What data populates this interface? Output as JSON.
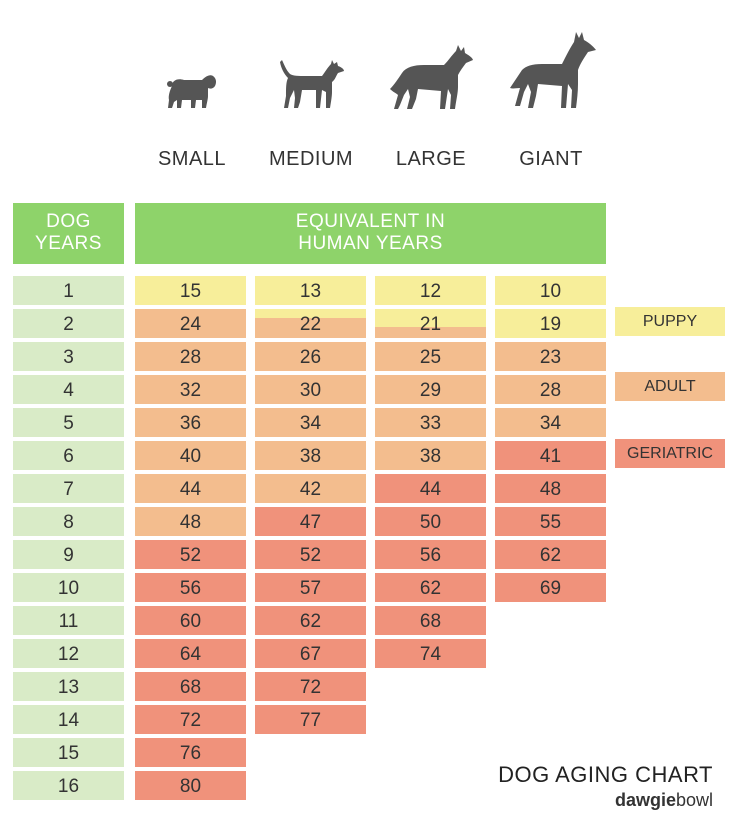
{
  "colors": {
    "header_green": "#8ed36a",
    "dog_years_cell": "#d9ebc7",
    "puppy": "#f7ee9a",
    "adult": "#f3bd8e",
    "geriatric": "#f0927b",
    "icon": "#555555"
  },
  "sizes": [
    {
      "label": "SMALL",
      "icon": "pug-silhouette-icon"
    },
    {
      "label": "MEDIUM",
      "icon": "medium-dog-silhouette-icon"
    },
    {
      "label": "LARGE",
      "icon": "shepherd-silhouette-icon"
    },
    {
      "label": "GIANT",
      "icon": "great-dane-silhouette-icon"
    }
  ],
  "headers": {
    "dog_years": [
      "DOG",
      "YEARS"
    ],
    "human_years": [
      "EQUIVALENT IN",
      "HUMAN YEARS"
    ]
  },
  "dog_years": [
    "1",
    "2",
    "3",
    "4",
    "5",
    "6",
    "7",
    "8",
    "9",
    "10",
    "11",
    "12",
    "13",
    "14",
    "15",
    "16"
  ],
  "columns": [
    {
      "size": "SMALL",
      "values": [
        "15",
        "24",
        "28",
        "32",
        "36",
        "40",
        "44",
        "48",
        "52",
        "56",
        "60",
        "64",
        "68",
        "72",
        "76",
        "80"
      ],
      "stages": [
        "puppy",
        "adult",
        "adult",
        "adult",
        "adult",
        "adult",
        "adult",
        "adult",
        "geriatric",
        "geriatric",
        "geriatric",
        "geriatric",
        "geriatric",
        "geriatric",
        "geriatric",
        "geriatric"
      ]
    },
    {
      "size": "MEDIUM",
      "values": [
        "13",
        "22",
        "26",
        "30",
        "34",
        "38",
        "42",
        "47",
        "52",
        "57",
        "62",
        "67",
        "72",
        "77"
      ],
      "stages": [
        "puppy",
        "puppy-adult",
        "adult",
        "adult",
        "adult",
        "adult",
        "adult",
        "geriatric",
        "geriatric",
        "geriatric",
        "geriatric",
        "geriatric",
        "geriatric",
        "geriatric"
      ]
    },
    {
      "size": "LARGE",
      "values": [
        "12",
        "21",
        "25",
        "29",
        "33",
        "38",
        "44",
        "50",
        "56",
        "62",
        "68",
        "74"
      ],
      "stages": [
        "puppy",
        "puppy-adult",
        "adult",
        "adult",
        "adult",
        "adult",
        "geriatric",
        "geriatric",
        "geriatric",
        "geriatric",
        "geriatric",
        "geriatric"
      ]
    },
    {
      "size": "GIANT",
      "values": [
        "10",
        "19",
        "23",
        "28",
        "34",
        "41",
        "48",
        "55",
        "62",
        "69"
      ],
      "stages": [
        "puppy",
        "puppy",
        "adult",
        "adult",
        "adult",
        "geriatric",
        "geriatric",
        "geriatric",
        "geriatric",
        "geriatric"
      ]
    }
  ],
  "legend": [
    {
      "label": "PUPPY",
      "stage": "puppy"
    },
    {
      "label": "ADULT",
      "stage": "adult"
    },
    {
      "label": "GERIATRIC",
      "stage": "geriatric"
    }
  ],
  "footer": {
    "title": "DOG AGING CHART",
    "brand_bold": "dawgie",
    "brand_light": "bowl"
  }
}
